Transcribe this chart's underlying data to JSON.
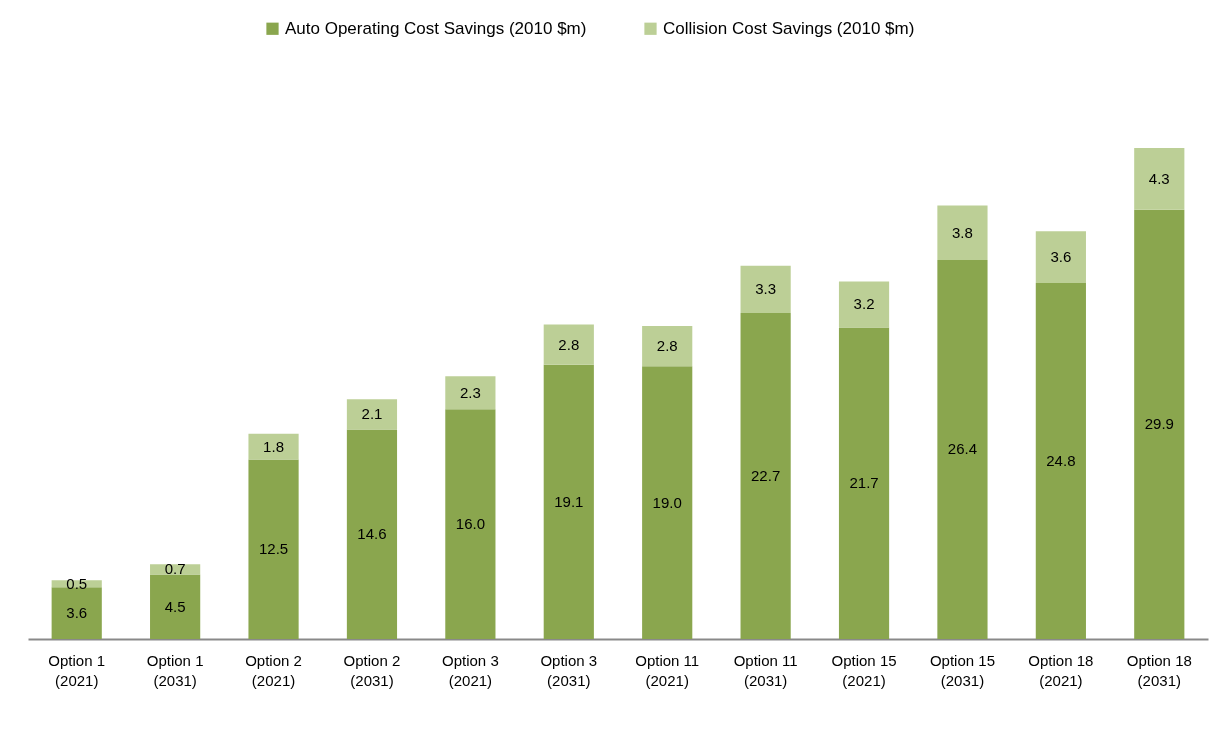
{
  "chart_data": {
    "type": "bar",
    "stacked": true,
    "legend": "top",
    "categories": [
      "Option 1\n(2021)",
      "Option 1\n(2031)",
      "Option 2\n(2021)",
      "Option 2\n(2031)",
      "Option 3\n(2021)",
      "Option 3\n(2031)",
      "Option 11\n(2021)",
      "Option 11\n(2031)",
      "Option 15\n(2021)",
      "Option 15\n(2031)",
      "Option 18\n(2021)",
      "Option 18\n(2031)"
    ],
    "series": [
      {
        "name": "Auto Operating Cost Savings (2010 $m)",
        "color": "#8aa64e",
        "values": [
          3.6,
          4.5,
          12.5,
          14.6,
          16.0,
          19.1,
          19.0,
          22.7,
          21.7,
          26.4,
          24.8,
          29.9
        ],
        "value_labels": [
          "3.6",
          "4.5",
          "12.5",
          "14.6",
          "16.0",
          "19.1",
          "19.0",
          "22.7",
          "21.7",
          "26.4",
          "24.8",
          "29.9"
        ]
      },
      {
        "name": "Collision Cost Savings (2010 $m)",
        "color": "#bccf96",
        "values": [
          0.5,
          0.7,
          1.8,
          2.1,
          2.3,
          2.8,
          2.8,
          3.3,
          3.2,
          3.8,
          3.6,
          4.3
        ],
        "value_labels": [
          "0.5",
          "0.7",
          "1.8",
          "2.1",
          "2.3",
          "2.8",
          "2.8",
          "3.3",
          "3.2",
          "3.8",
          "3.6",
          "4.3"
        ]
      }
    ]
  }
}
